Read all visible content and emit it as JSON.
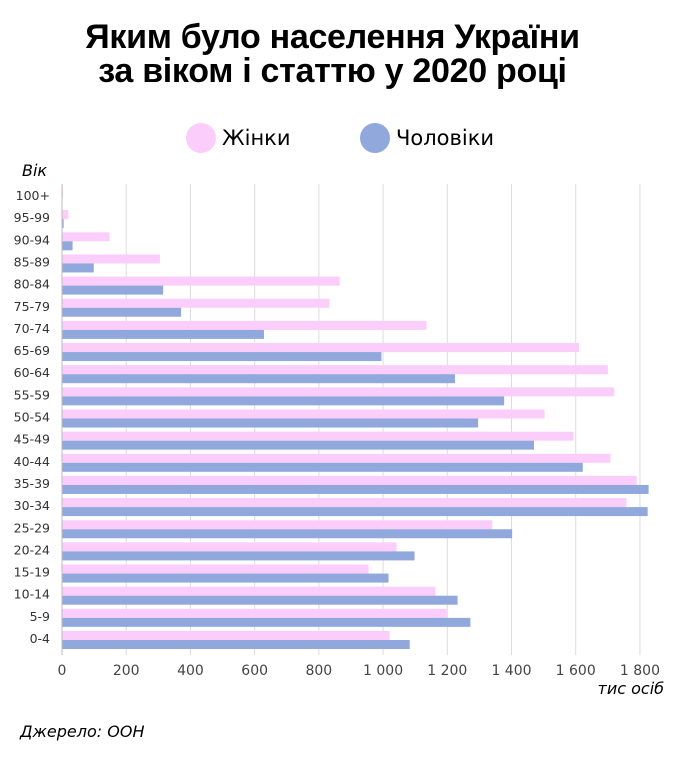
{
  "chart_data": {
    "type": "bar",
    "orientation": "horizontal",
    "title_lines": [
      "Яким було населення України",
      "за віком і статтю у 2020 році"
    ],
    "ylabel": "Вік",
    "xlabel": "тис осіб",
    "xlim": [
      0,
      1850
    ],
    "x_ticks": [
      0,
      200,
      400,
      600,
      800,
      1000,
      1200,
      1400,
      1600,
      1800
    ],
    "x_tick_labels": [
      "0",
      "200",
      "400",
      "600",
      "800",
      "1 000",
      "1 200",
      "1 400",
      "1 600",
      "1 800"
    ],
    "grid": "vertical",
    "legend_position": "top",
    "categories": [
      "100+",
      "95-99",
      "90-94",
      "85-89",
      "80-84",
      "75-79",
      "70-74",
      "65-69",
      "60-64",
      "55-59",
      "50-54",
      "45-49",
      "40-44",
      "35-39",
      "30-34",
      "25-29",
      "20-24",
      "15-19",
      "10-14",
      "5-9",
      "0-4"
    ],
    "series": [
      {
        "name": "Жінки",
        "color": "#fbcdfb",
        "values": [
          3,
          20,
          148,
          305,
          865,
          833,
          1135,
          1610,
          1700,
          1720,
          1503,
          1593,
          1708,
          1790,
          1758,
          1340,
          1042,
          955,
          1163,
          1198,
          1020
        ]
      },
      {
        "name": "Чоловіки",
        "color": "#91a8dc",
        "values": [
          1,
          5,
          33,
          99,
          315,
          371,
          629,
          995,
          1224,
          1377,
          1296,
          1470,
          1622,
          1827,
          1824,
          1402,
          1098,
          1017,
          1232,
          1272,
          1083
        ]
      }
    ]
  },
  "source": "Джерело: ООН"
}
